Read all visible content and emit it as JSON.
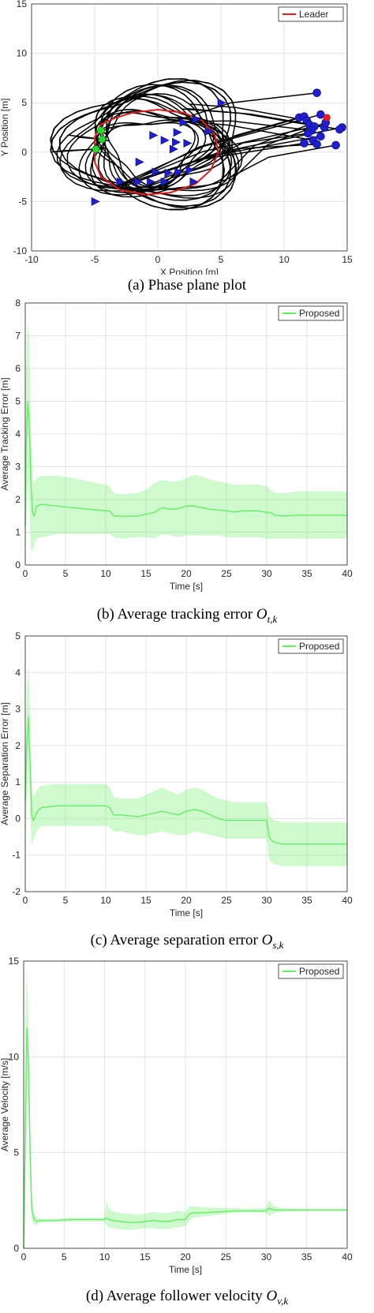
{
  "chart_data": [
    {
      "type": "line",
      "panel": "a",
      "xlabel": "X Position [m]",
      "ylabel": "Y Position [m]",
      "xlim": [
        -10,
        15
      ],
      "ylim": [
        -10,
        15
      ],
      "xticks": [
        -10,
        -5,
        0,
        5,
        10,
        15
      ],
      "yticks": [
        -10,
        -5,
        0,
        5,
        10,
        15
      ],
      "grid": true,
      "legend": {
        "position": "top-right",
        "entries": [
          "Leader"
        ]
      },
      "leader_color": "#e41a1c",
      "follower_color": "#000000",
      "marker_color": "#1f1fd0",
      "start_color": "#22dd22",
      "leader_path": [
        [
          -4.5,
          2.8
        ],
        [
          -5,
          1.5
        ],
        [
          -5,
          -1
        ],
        [
          -4.5,
          -2.5
        ],
        [
          -3,
          -3.8
        ],
        [
          -1,
          -4.3
        ],
        [
          1,
          -4.1
        ],
        [
          3,
          -3.2
        ],
        [
          4.2,
          -1.8
        ],
        [
          4.8,
          0
        ],
        [
          4.5,
          1.8
        ],
        [
          3.5,
          3.2
        ],
        [
          2,
          4
        ],
        [
          0,
          4.3
        ],
        [
          -2,
          4
        ],
        [
          -3.5,
          3.4
        ],
        [
          -4.5,
          2.8
        ]
      ],
      "start_points": [
        [
          -4.5,
          2.2
        ],
        [
          -4.4,
          1.3
        ],
        [
          -4.9,
          0.3
        ]
      ],
      "end_points": [
        [
          12.6,
          6
        ],
        [
          11.2,
          3.5
        ],
        [
          11.6,
          3.6
        ],
        [
          11.8,
          3.2
        ],
        [
          12,
          2.8
        ],
        [
          12.4,
          2.6
        ],
        [
          12.2,
          2.2
        ],
        [
          11.9,
          1.9
        ],
        [
          12.9,
          3.8
        ],
        [
          13.2,
          2.5
        ],
        [
          13.3,
          3
        ],
        [
          12.9,
          1.6
        ],
        [
          12.3,
          1.2
        ],
        [
          12.6,
          0.8
        ],
        [
          14.6,
          2.5
        ],
        [
          14.4,
          2.3
        ],
        [
          14.1,
          0.7
        ],
        [
          11.6,
          0.9
        ]
      ],
      "triangle_markers": [
        [
          5,
          5
        ],
        [
          3,
          3.3
        ],
        [
          2,
          3
        ],
        [
          4,
          2.1
        ],
        [
          1.5,
          2
        ],
        [
          -0.4,
          1.7
        ],
        [
          1.4,
          1
        ],
        [
          2.3,
          0.9
        ],
        [
          1.2,
          0.3
        ],
        [
          0.5,
          1.2
        ],
        [
          -1.5,
          -1
        ],
        [
          -0.2,
          -2
        ],
        [
          0.8,
          -2.1
        ],
        [
          1.6,
          -2
        ],
        [
          2.5,
          -1.8
        ],
        [
          -3,
          -3
        ],
        [
          -1.6,
          -3
        ],
        [
          -0.6,
          -3
        ],
        [
          0.5,
          -3
        ],
        [
          2.8,
          -3
        ],
        [
          -5,
          -5
        ]
      ]
    },
    {
      "type": "area",
      "panel": "b",
      "xlabel": "Time [s]",
      "ylabel": "Average Tracking Error [m]",
      "xlim": [
        0,
        40
      ],
      "ylim": [
        0,
        8
      ],
      "xticks": [
        0,
        5,
        10,
        15,
        20,
        25,
        30,
        35,
        40
      ],
      "yticks": [
        0,
        1,
        2,
        3,
        4,
        5,
        6,
        7,
        8
      ],
      "grid": true,
      "legend": {
        "position": "top-right",
        "entries": [
          "Proposed"
        ]
      },
      "series": [
        {
          "name": "Proposed",
          "color": "#66ee66",
          "x": [
            0,
            0.1,
            0.3,
            0.5,
            0.7,
            0.9,
            1.1,
            1.4,
            2,
            4,
            6,
            8,
            10,
            10.5,
            11,
            12,
            14,
            15,
            16,
            17,
            18,
            19,
            20,
            21,
            22,
            23,
            24,
            25,
            26,
            27,
            28,
            29,
            30,
            30.5,
            31,
            32,
            34,
            36,
            38,
            40
          ],
          "mean": [
            1.2,
            3.5,
            5.0,
            4.3,
            2.6,
            1.6,
            1.5,
            1.8,
            1.85,
            1.8,
            1.75,
            1.7,
            1.65,
            1.65,
            1.5,
            1.48,
            1.5,
            1.55,
            1.6,
            1.75,
            1.7,
            1.72,
            1.8,
            1.8,
            1.75,
            1.7,
            1.68,
            1.65,
            1.62,
            1.65,
            1.65,
            1.65,
            1.6,
            1.6,
            1.52,
            1.5,
            1.52,
            1.52,
            1.52,
            1.52
          ],
          "lower": [
            0.3,
            1.5,
            2.5,
            2.0,
            0.5,
            0.4,
            0.6,
            0.8,
            0.85,
            0.95,
            0.95,
            0.95,
            0.95,
            0.95,
            0.85,
            0.8,
            0.85,
            0.85,
            0.8,
            0.95,
            0.9,
            0.85,
            0.9,
            0.9,
            0.9,
            0.9,
            0.9,
            0.85,
            0.85,
            0.85,
            0.85,
            0.85,
            0.8,
            0.8,
            0.8,
            0.8,
            0.8,
            0.8,
            0.8,
            0.8
          ],
          "upper": [
            2.0,
            6.0,
            7.5,
            6.8,
            4.5,
            2.7,
            2.5,
            2.65,
            2.72,
            2.72,
            2.65,
            2.55,
            2.45,
            2.4,
            2.2,
            2.15,
            2.2,
            2.3,
            2.5,
            2.6,
            2.55,
            2.55,
            2.65,
            2.75,
            2.7,
            2.6,
            2.55,
            2.5,
            2.45,
            2.45,
            2.45,
            2.45,
            2.4,
            2.3,
            2.2,
            2.2,
            2.25,
            2.25,
            2.25,
            2.25
          ]
        }
      ]
    },
    {
      "type": "area",
      "panel": "c",
      "xlabel": "Time [s]",
      "ylabel": "Average Separation Error [m]",
      "xlim": [
        0,
        40
      ],
      "ylim": [
        -2,
        5
      ],
      "xticks": [
        0,
        5,
        10,
        15,
        20,
        25,
        30,
        35,
        40
      ],
      "yticks": [
        -2,
        -1,
        0,
        1,
        2,
        3,
        4,
        5
      ],
      "grid": true,
      "legend": {
        "position": "top-right",
        "entries": [
          "Proposed"
        ]
      },
      "series": [
        {
          "name": "Proposed",
          "color": "#66ee66",
          "x": [
            0,
            0.2,
            0.4,
            0.6,
            0.8,
            1,
            1.5,
            2,
            4,
            6,
            8,
            10,
            10.5,
            11,
            12,
            14,
            15,
            16,
            17,
            18,
            19,
            20,
            21,
            22,
            23,
            24,
            25,
            26,
            28,
            30,
            30.3,
            30.6,
            31,
            32,
            34,
            36,
            38,
            40
          ],
          "mean": [
            0.5,
            2.0,
            2.8,
            1.5,
            0.1,
            -0.05,
            0.2,
            0.3,
            0.35,
            0.35,
            0.35,
            0.35,
            0.3,
            0.1,
            0.1,
            0.05,
            0.1,
            0.15,
            0.2,
            0.15,
            0.1,
            0.2,
            0.25,
            0.2,
            0.1,
            0.0,
            -0.05,
            -0.05,
            -0.05,
            -0.05,
            -0.5,
            -0.6,
            -0.65,
            -0.7,
            -0.7,
            -0.7,
            -0.7,
            -0.7
          ],
          "lower": [
            -0.5,
            0.5,
            1.5,
            0.2,
            -0.7,
            -0.6,
            -0.3,
            -0.2,
            -0.2,
            -0.2,
            -0.2,
            -0.2,
            -0.25,
            -0.35,
            -0.35,
            -0.45,
            -0.45,
            -0.4,
            -0.35,
            -0.4,
            -0.45,
            -0.45,
            -0.35,
            -0.4,
            -0.45,
            -0.5,
            -0.55,
            -0.55,
            -0.55,
            -0.55,
            -1.1,
            -1.2,
            -1.25,
            -1.3,
            -1.3,
            -1.3,
            -1.3,
            -1.3
          ],
          "upper": [
            1.5,
            3.5,
            4.2,
            2.8,
            0.9,
            0.6,
            0.8,
            0.9,
            0.95,
            0.95,
            0.95,
            0.95,
            0.85,
            0.6,
            0.55,
            0.55,
            0.65,
            0.75,
            0.85,
            0.75,
            0.65,
            0.8,
            0.85,
            0.8,
            0.65,
            0.55,
            0.5,
            0.45,
            0.45,
            0.45,
            0.1,
            0.0,
            -0.05,
            -0.1,
            -0.1,
            -0.1,
            -0.1,
            -0.1
          ]
        }
      ]
    },
    {
      "type": "area",
      "panel": "d",
      "xlabel": "Time [s]",
      "ylabel": "Average Velocity [m/s]",
      "xlim": [
        0,
        40
      ],
      "ylim": [
        0,
        15
      ],
      "xticks": [
        0,
        5,
        10,
        15,
        20,
        25,
        30,
        35,
        40
      ],
      "yticks": [
        0,
        5,
        10,
        15
      ],
      "grid": true,
      "legend": {
        "position": "top-right",
        "entries": [
          "Proposed"
        ]
      },
      "series": [
        {
          "name": "Proposed",
          "color": "#66ee66",
          "x": [
            0,
            0.2,
            0.4,
            0.6,
            0.8,
            1.0,
            1.3,
            1.6,
            2,
            4,
            6,
            8,
            10,
            10.2,
            10.5,
            11,
            12,
            13,
            14,
            15,
            16,
            17,
            18,
            19,
            20,
            20.5,
            21,
            22,
            24,
            26,
            28,
            30,
            30.3,
            30.6,
            31,
            32,
            34,
            36,
            38,
            40
          ],
          "mean": [
            0,
            6,
            11.5,
            9.5,
            5,
            2,
            1.5,
            1.4,
            1.45,
            1.45,
            1.5,
            1.5,
            1.5,
            1.6,
            1.5,
            1.45,
            1.4,
            1.35,
            1.35,
            1.4,
            1.45,
            1.4,
            1.4,
            1.5,
            1.5,
            1.8,
            1.85,
            1.85,
            1.9,
            1.95,
            1.95,
            1.95,
            2.1,
            2.05,
            2,
            2,
            2,
            2,
            2,
            2
          ],
          "lower": [
            0,
            2,
            9,
            7,
            3,
            1.5,
            1.2,
            1.25,
            1.35,
            1.4,
            1.4,
            1.4,
            1.4,
            1.2,
            1.1,
            1.05,
            1.0,
            0.95,
            1.0,
            1.05,
            1.05,
            1.0,
            1.0,
            1.1,
            1.15,
            1.45,
            1.6,
            1.65,
            1.75,
            1.85,
            1.9,
            1.85,
            1.7,
            1.75,
            1.85,
            1.9,
            1.95,
            1.95,
            1.95,
            1.95
          ],
          "upper": [
            0.5,
            12,
            14.5,
            12,
            7,
            2.5,
            1.8,
            1.6,
            1.55,
            1.55,
            1.6,
            1.6,
            1.6,
            2.5,
            2.1,
            1.95,
            1.85,
            1.8,
            1.75,
            1.8,
            1.9,
            1.85,
            1.85,
            1.95,
            1.9,
            2.2,
            2.2,
            2.15,
            2.1,
            2.1,
            2.05,
            2.1,
            2.5,
            2.4,
            2.2,
            2.1,
            2.05,
            2.05,
            2.05,
            2.05
          ]
        }
      ]
    }
  ],
  "captions": {
    "a": {
      "label": "(a) Phase plane plot"
    },
    "b": {
      "label": "(b) Average tracking error",
      "math": "O",
      "sub": "t,k"
    },
    "c": {
      "label": "(c) Average separation error",
      "math": "O",
      "sub": "s,k"
    },
    "d": {
      "label": "(d) Average follower velocity",
      "math": "O",
      "sub": "v,k"
    }
  }
}
